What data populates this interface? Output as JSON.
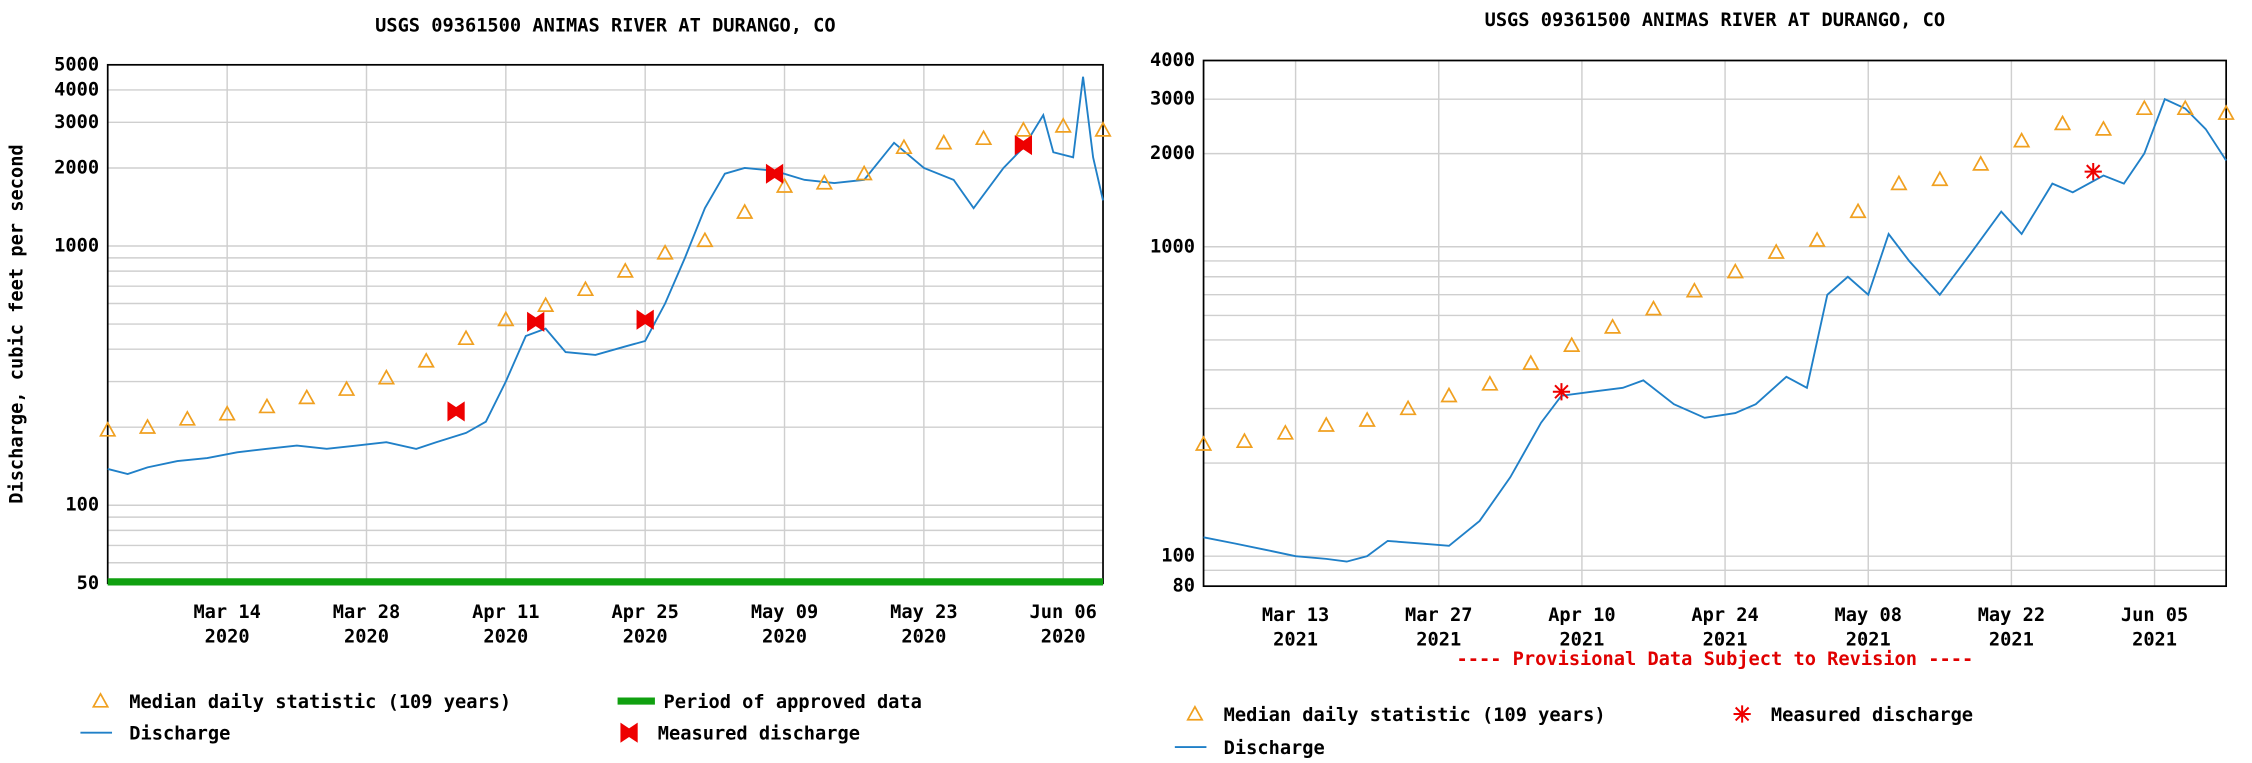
{
  "chart_data": [
    {
      "type": "line",
      "title": "USGS 09361500 ANIMAS RIVER AT DURANGO, CO",
      "y_label": "Discharge, cubic feet per second",
      "ylog": true,
      "grid": true,
      "xlim": [
        "2020-03-02",
        "2020-06-10"
      ],
      "ylim": [
        50,
        5000
      ],
      "yticks": [
        50,
        100,
        1000,
        2000,
        3000,
        4000,
        5000
      ],
      "yminor": [
        60,
        70,
        80,
        90,
        200,
        300,
        400,
        500,
        600,
        700,
        800,
        900
      ],
      "xticks": [
        {
          "value": "2020-03-14",
          "label": "Mar 14 2020"
        },
        {
          "value": "2020-03-28",
          "label": "Mar 28 2020"
        },
        {
          "value": "2020-04-11",
          "label": "Apr 11 2020"
        },
        {
          "value": "2020-04-25",
          "label": "Apr 25 2020"
        },
        {
          "value": "2020-05-09",
          "label": "May 09 2020"
        },
        {
          "value": "2020-05-23",
          "label": "May 23 2020"
        },
        {
          "value": "2020-06-06",
          "label": "Jun 06 2020"
        }
      ],
      "series": [
        {
          "name": "Median daily statistic (109 years)",
          "style": "triangle",
          "color": "#f0a020",
          "x": [
            "2020-03-02",
            "2020-03-06",
            "2020-03-10",
            "2020-03-14",
            "2020-03-18",
            "2020-03-22",
            "2020-03-26",
            "2020-03-30",
            "2020-04-03",
            "2020-04-07",
            "2020-04-11",
            "2020-04-15",
            "2020-04-19",
            "2020-04-23",
            "2020-04-27",
            "2020-05-01",
            "2020-05-05",
            "2020-05-09",
            "2020-05-13",
            "2020-05-17",
            "2020-05-21",
            "2020-05-25",
            "2020-05-29",
            "2020-06-02",
            "2020-06-06",
            "2020-06-10"
          ],
          "values": [
            195,
            200,
            215,
            225,
            240,
            260,
            280,
            310,
            360,
            440,
            520,
            590,
            680,
            800,
            940,
            1050,
            1350,
            1700,
            1750,
            1900,
            2400,
            2500,
            2600,
            2800,
            2900,
            2800
          ]
        },
        {
          "name": "Period of approved data",
          "style": "period",
          "color": "#10a010",
          "x": [
            "2020-03-02",
            "2020-06-10"
          ]
        },
        {
          "name": "Discharge",
          "style": "line",
          "color": "#2080c8",
          "x": [
            "2020-03-02",
            "2020-03-04",
            "2020-03-06",
            "2020-03-09",
            "2020-03-12",
            "2020-03-15",
            "2020-03-18",
            "2020-03-21",
            "2020-03-24",
            "2020-03-27",
            "2020-03-30",
            "2020-04-02",
            "2020-04-04",
            "2020-04-07",
            "2020-04-09",
            "2020-04-11",
            "2020-04-13",
            "2020-04-15",
            "2020-04-17",
            "2020-04-20",
            "2020-04-23",
            "2020-04-25",
            "2020-04-27",
            "2020-04-29",
            "2020-05-01",
            "2020-05-03",
            "2020-05-05",
            "2020-05-08",
            "2020-05-11",
            "2020-05-14",
            "2020-05-17",
            "2020-05-20",
            "2020-05-23",
            "2020-05-26",
            "2020-05-28",
            "2020-05-31",
            "2020-06-02",
            "2020-06-04",
            "2020-06-05",
            "2020-06-07",
            "2020-06-08",
            "2020-06-09",
            "2020-06-10"
          ],
          "values": [
            138,
            132,
            140,
            148,
            152,
            160,
            165,
            170,
            165,
            170,
            175,
            165,
            175,
            190,
            210,
            300,
            450,
            480,
            390,
            380,
            410,
            430,
            600,
            900,
            1400,
            1900,
            2000,
            1950,
            1800,
            1750,
            1800,
            2500,
            2000,
            1800,
            1400,
            2000,
            2400,
            3200,
            2300,
            2200,
            4500,
            2200,
            1500
          ]
        },
        {
          "name": "Measured discharge",
          "style": "bowtie",
          "color": "#ee0000",
          "x": [
            "2020-04-06",
            "2020-04-14",
            "2020-04-25",
            "2020-05-08",
            "2020-06-02"
          ],
          "values": [
            230,
            510,
            520,
            1900,
            2450
          ]
        }
      ]
    },
    {
      "type": "line",
      "title": "USGS 09361500 ANIMAS RIVER AT DURANGO, CO",
      "subtitle": "---- Provisional Data Subject to Revision ----",
      "ylog": true,
      "grid": true,
      "xlim": [
        "2021-03-04",
        "2021-06-12"
      ],
      "ylim": [
        80,
        4000
      ],
      "yticks": [
        80,
        100,
        1000,
        2000,
        3000,
        4000
      ],
      "yminor": [
        90,
        200,
        300,
        400,
        500,
        600,
        700,
        800,
        900
      ],
      "xticks": [
        {
          "value": "2021-03-13",
          "label": "Mar 13 2021"
        },
        {
          "value": "2021-03-27",
          "label": "Mar 27 2021"
        },
        {
          "value": "2021-04-10",
          "label": "Apr 10 2021"
        },
        {
          "value": "2021-04-24",
          "label": "Apr 24 2021"
        },
        {
          "value": "2021-05-08",
          "label": "May 08 2021"
        },
        {
          "value": "2021-05-22",
          "label": "May 22 2021"
        },
        {
          "value": "2021-06-05",
          "label": "Jun 05 2021"
        }
      ],
      "series": [
        {
          "name": "Median daily statistic (109 years)",
          "style": "triangle",
          "color": "#f0a020",
          "x": [
            "2021-03-04",
            "2021-03-08",
            "2021-03-12",
            "2021-03-16",
            "2021-03-20",
            "2021-03-24",
            "2021-03-28",
            "2021-04-01",
            "2021-04-05",
            "2021-04-09",
            "2021-04-13",
            "2021-04-17",
            "2021-04-21",
            "2021-04-25",
            "2021-04-29",
            "2021-05-03",
            "2021-05-07",
            "2021-05-11",
            "2021-05-15",
            "2021-05-19",
            "2021-05-23",
            "2021-05-27",
            "2021-05-31",
            "2021-06-04",
            "2021-06-08",
            "2021-06-12"
          ],
          "values": [
            230,
            235,
            250,
            265,
            275,
            300,
            330,
            360,
            420,
            480,
            550,
            630,
            720,
            830,
            960,
            1050,
            1300,
            1600,
            1650,
            1850,
            2200,
            2500,
            2400,
            2800,
            2800,
            2700
          ]
        },
        {
          "name": "Measured discharge",
          "style": "asterisk",
          "color": "#ee0000",
          "x": [
            "2021-04-08",
            "2021-05-30"
          ],
          "values": [
            340,
            1750
          ]
        },
        {
          "name": "Discharge",
          "style": "line",
          "color": "#2080c8",
          "x": [
            "2021-03-04",
            "2021-03-07",
            "2021-03-10",
            "2021-03-13",
            "2021-03-16",
            "2021-03-18",
            "2021-03-20",
            "2021-03-22",
            "2021-03-25",
            "2021-03-28",
            "2021-03-31",
            "2021-04-03",
            "2021-04-06",
            "2021-04-08",
            "2021-04-11",
            "2021-04-14",
            "2021-04-16",
            "2021-04-19",
            "2021-04-22",
            "2021-04-25",
            "2021-04-27",
            "2021-04-30",
            "2021-05-02",
            "2021-05-04",
            "2021-05-06",
            "2021-05-08",
            "2021-05-10",
            "2021-05-12",
            "2021-05-15",
            "2021-05-18",
            "2021-05-21",
            "2021-05-23",
            "2021-05-26",
            "2021-05-28",
            "2021-05-31",
            "2021-06-02",
            "2021-06-04",
            "2021-06-06",
            "2021-06-08",
            "2021-06-10",
            "2021-06-12"
          ],
          "values": [
            115,
            110,
            105,
            100,
            98,
            96,
            100,
            112,
            110,
            108,
            130,
            180,
            270,
            330,
            340,
            350,
            370,
            310,
            280,
            290,
            310,
            380,
            350,
            700,
            800,
            700,
            1100,
            900,
            700,
            950,
            1300,
            1100,
            1600,
            1500,
            1700,
            1600,
            2000,
            3000,
            2800,
            2400,
            1900
          ]
        }
      ]
    }
  ]
}
